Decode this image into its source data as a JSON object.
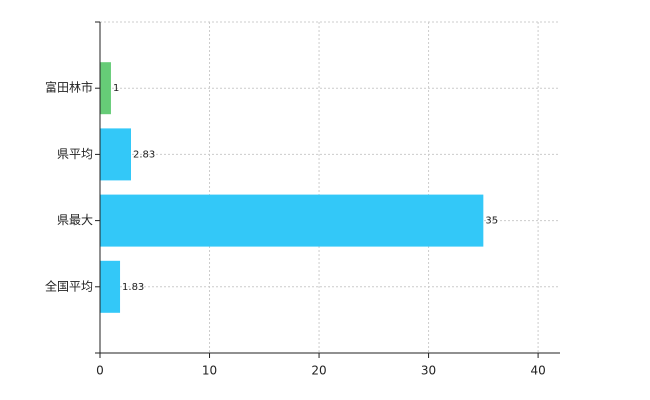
{
  "chart_data": {
    "type": "barh",
    "categories": [
      "富田林市",
      "県平均",
      "県最大",
      "全国平均"
    ],
    "values": [
      1,
      2.83,
      35,
      1.83
    ],
    "colors": [
      "#66cc77",
      "#33c8f8",
      "#33c8f8",
      "#33c8f8"
    ],
    "xlim": [
      0,
      42
    ],
    "xticks": [
      0,
      10,
      20,
      30,
      40
    ],
    "grid": true
  }
}
